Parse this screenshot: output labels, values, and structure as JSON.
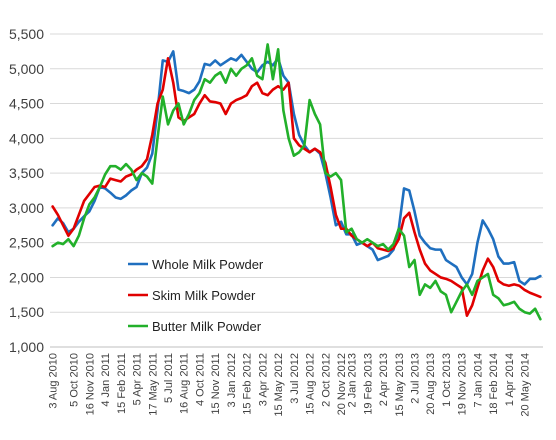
{
  "chart_data": {
    "type": "line",
    "title": "",
    "xlabel": "",
    "ylabel": "",
    "ylim": [
      1000,
      5500
    ],
    "yticks": [
      "1,000",
      "1,500",
      "2,000",
      "2,500",
      "3,000",
      "3,500",
      "4,000",
      "4,500",
      "5,000",
      "5,500"
    ],
    "ytick_values": [
      1000,
      1500,
      2000,
      2500,
      3000,
      3500,
      4000,
      4500,
      5000,
      5500
    ],
    "grid": true,
    "legend_position": "bottom-left",
    "x_tick_labels": [
      "3 Aug 2010",
      "5 Oct 2010",
      "16 Nov 2010",
      "4 Jan 2011",
      "15 Feb 2011",
      "5 Apr 2011",
      "17 May 2011",
      "5 Jul 2011",
      "16 Aug 2011",
      "4 Oct 2011",
      "15 Nov 2011",
      "3 Jan 2012",
      "15 Feb 2012",
      "3 Apr 2012",
      "15 May 2012",
      "3 Jul 2012",
      "15 Aug 2012",
      "2 Oct 2012",
      "20 Nov 2012",
      "2 Jan 2013",
      "19 Feb 2013",
      "2 Apr 2013",
      "15 May 2013",
      "2 Jul 2013",
      "20 Aug 2013",
      "1 Oct 2013",
      "19 Nov 2013",
      "7 Jan 2014",
      "18 Feb 2014",
      "1 Apr 2014",
      "20 May 2014"
    ],
    "x_tick_positions": [
      0,
      4,
      7,
      10,
      13,
      16,
      19,
      22,
      25,
      28,
      31,
      34,
      37,
      40,
      43,
      46,
      49,
      52,
      55,
      57,
      60,
      63,
      66,
      69,
      72,
      75,
      78,
      81,
      84,
      87,
      90
    ],
    "x_count": 94,
    "series": [
      {
        "name": "Whole Milk Powder",
        "color": "#1f6fbf",
        "values": [
          2750,
          2850,
          2780,
          2650,
          2700,
          2800,
          2880,
          2950,
          3100,
          3300,
          3280,
          3220,
          3150,
          3130,
          3180,
          3250,
          3300,
          3500,
          3580,
          3780,
          4400,
          5120,
          5100,
          5250,
          4700,
          4680,
          4650,
          4700,
          4820,
          5070,
          5050,
          5120,
          5050,
          5100,
          5150,
          5120,
          5200,
          5100,
          5000,
          4950,
          5050,
          5100,
          5050,
          5150,
          4900,
          4800,
          4350,
          4050,
          3900,
          3800,
          3850,
          3780,
          3500,
          3150,
          2750,
          2800,
          2620,
          2620,
          2470,
          2500,
          2450,
          2400,
          2250,
          2280,
          2310,
          2400,
          2700,
          3280,
          3250,
          2950,
          2600,
          2500,
          2420,
          2400,
          2400,
          2250,
          2200,
          2150,
          2000,
          1900,
          2050,
          2500,
          2820,
          2700,
          2550,
          2300,
          2200,
          2200,
          2220,
          1950,
          1900,
          1980,
          1980,
          2020
        ]
      },
      {
        "name": "Skim Milk Powder",
        "color": "#e00000",
        "values": [
          3020,
          2900,
          2750,
          2600,
          2700,
          2900,
          3100,
          3200,
          3300,
          3320,
          3300,
          3420,
          3400,
          3380,
          3450,
          3480,
          3550,
          3600,
          3700,
          4050,
          4500,
          4700,
          5150,
          4800,
          4300,
          4250,
          4300,
          4350,
          4500,
          4620,
          4530,
          4520,
          4500,
          4350,
          4500,
          4550,
          4580,
          4620,
          4750,
          4800,
          4650,
          4620,
          4700,
          4750,
          4700,
          4800,
          4000,
          3900,
          3850,
          3800,
          3850,
          3800,
          3650,
          3300,
          2900,
          2700,
          2700,
          2600,
          2550,
          2500,
          2450,
          2500,
          2420,
          2400,
          2380,
          2420,
          2550,
          2850,
          2930,
          2650,
          2400,
          2200,
          2100,
          2050,
          2000,
          1980,
          1950,
          1900,
          1850,
          1450,
          1600,
          1850,
          2100,
          2270,
          2150,
          1950,
          1900,
          1880,
          1900,
          1880,
          1820,
          1780,
          1750,
          1720
        ]
      },
      {
        "name": "Butter Milk Powder",
        "color": "#22b02a",
        "values": [
          2450,
          2500,
          2480,
          2550,
          2450,
          2600,
          2850,
          3050,
          3150,
          3300,
          3480,
          3600,
          3600,
          3550,
          3630,
          3550,
          3400,
          3500,
          3450,
          3350,
          4000,
          4600,
          4200,
          4400,
          4500,
          4200,
          4350,
          4550,
          4650,
          4850,
          4800,
          4900,
          4950,
          4800,
          5000,
          4900,
          5000,
          5050,
          5150,
          4900,
          4850,
          5350,
          4850,
          5280,
          4400,
          4000,
          3750,
          3800,
          3900,
          4550,
          4350,
          4200,
          3500,
          3450,
          3500,
          3400,
          2650,
          2700,
          2550,
          2500,
          2550,
          2500,
          2450,
          2480,
          2400,
          2480,
          2700,
          2600,
          2150,
          2250,
          1750,
          1900,
          1850,
          1950,
          1800,
          1750,
          1500,
          1650,
          1800,
          1900,
          1750,
          1950,
          2000,
          2050,
          1750,
          1700,
          1600,
          1620,
          1650,
          1550,
          1500,
          1480,
          1550,
          1400
        ]
      }
    ]
  }
}
